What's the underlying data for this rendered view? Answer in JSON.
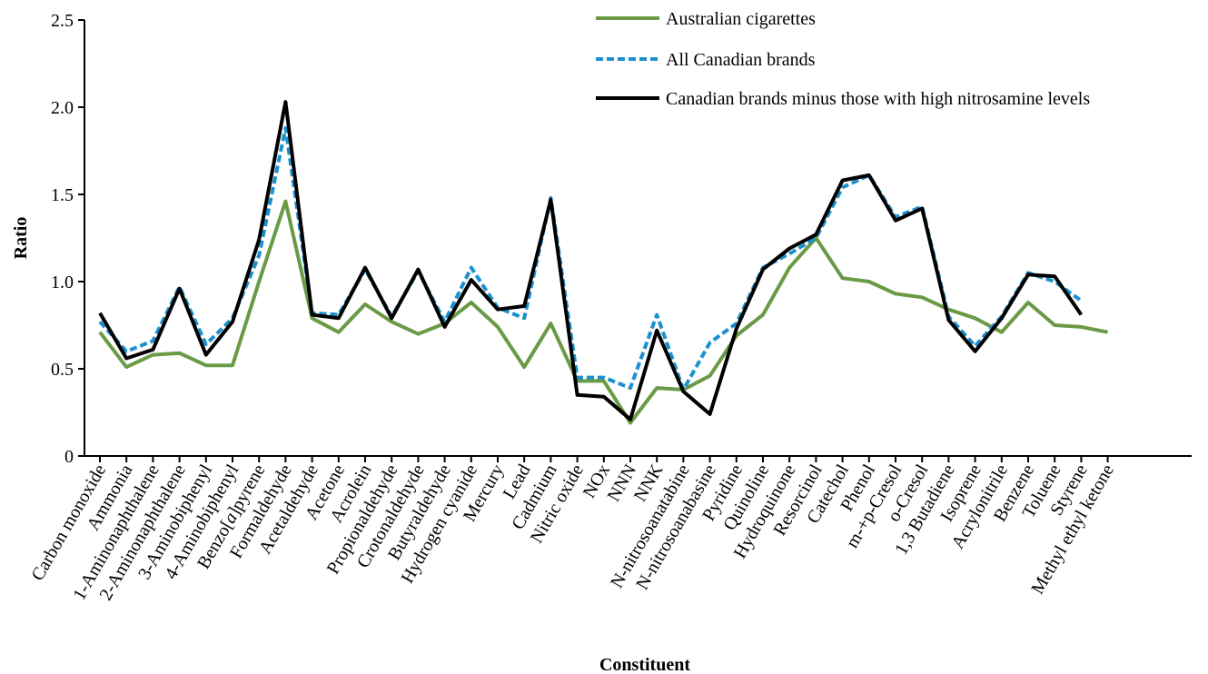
{
  "chart_data": {
    "type": "line",
    "xlabel": "Constituent",
    "ylabel": "Ratio",
    "ylim": [
      0,
      2.5
    ],
    "yticks": [
      "0",
      "0.5",
      "1.0",
      "1.5",
      "2.0",
      "2.5"
    ],
    "grid": false,
    "legend_position": "top-right",
    "categories": [
      "Carbon monoxide",
      "Ammonia",
      "1-Aminonaphthalene",
      "2-Aminonaphthalene",
      "3-Aminobiphenyl",
      "4-Aminobiphenyl",
      "Benzo[a]pyrene",
      "Formaldehyde",
      "Acetaldehyde",
      "Acetone",
      "Acrolein",
      "Propionaldehyde",
      "Crotonaldehyde",
      "Butyraldehyde",
      "Hydrogen cyanide",
      "Mercury",
      "Lead",
      "Cadmium",
      "Nitric oxide",
      "NOx",
      "NNN",
      "NNK",
      "N-nitrosoanatabine",
      "N-nitrosoanabasine",
      "Pyridine",
      "Quinoline",
      "Hydroquinone",
      "Resorcinol",
      "Catechol",
      "Phenol",
      "m-+p-Cresol",
      "o-Cresol",
      "1,3 Butadiene",
      "Isoprene",
      "Acrylonitrile",
      "Benzene",
      "Toluene",
      "Styrene",
      "Methyl ethyl ketone"
    ],
    "series": [
      {
        "name": "Australian cigarettes",
        "color": "#6a9a46",
        "style": "solid",
        "values": [
          0.71,
          0.51,
          0.58,
          0.59,
          0.52,
          0.52,
          1.0,
          1.46,
          0.79,
          0.71,
          0.87,
          0.77,
          0.7,
          0.76,
          0.88,
          0.74,
          0.51,
          0.76,
          0.43,
          0.43,
          0.19,
          0.39,
          0.38,
          0.46,
          0.69,
          0.81,
          1.08,
          1.25,
          1.02,
          1.0,
          0.93,
          0.91,
          0.84,
          0.79,
          0.71,
          0.88,
          0.75,
          0.74,
          0.71
        ]
      },
      {
        "name": "All Canadian brands",
        "color": "#1a90cf",
        "style": "dashed",
        "values": [
          0.77,
          0.6,
          0.66,
          0.97,
          0.64,
          0.79,
          1.15,
          1.88,
          0.82,
          0.81,
          1.07,
          0.8,
          1.06,
          0.77,
          1.08,
          0.85,
          0.79,
          1.48,
          0.45,
          0.45,
          0.39,
          0.81,
          0.38,
          0.65,
          0.76,
          1.08,
          1.16,
          1.25,
          1.54,
          1.61,
          1.37,
          1.43,
          0.8,
          0.63,
          0.8,
          1.05,
          1.0,
          0.89,
          null
        ]
      },
      {
        "name": "Canadian brands minus those with high nitrosamine levels",
        "color": "#000000",
        "style": "solid",
        "values": [
          0.82,
          0.56,
          0.61,
          0.96,
          0.58,
          0.77,
          1.24,
          2.03,
          0.81,
          0.79,
          1.08,
          0.79,
          1.07,
          0.74,
          1.01,
          0.84,
          0.86,
          1.47,
          0.35,
          0.34,
          0.21,
          0.72,
          0.37,
          0.24,
          0.73,
          1.07,
          1.19,
          1.27,
          1.58,
          1.61,
          1.35,
          1.42,
          0.78,
          0.6,
          0.79,
          1.04,
          1.03,
          0.81,
          null
        ]
      }
    ]
  }
}
